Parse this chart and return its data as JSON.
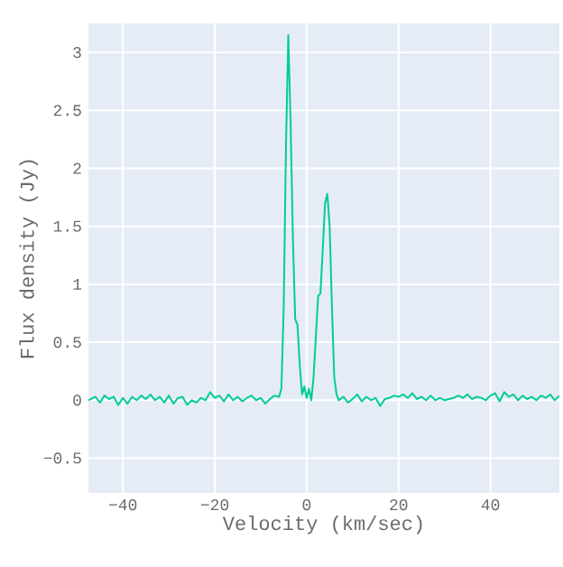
{
  "chart_data": {
    "type": "line",
    "xlabel": "Velocity (km/sec)",
    "ylabel": "Flux density (Jy)",
    "x": [
      -47.5,
      -46,
      -45,
      -44,
      -43,
      -42,
      -41,
      -40,
      -39,
      -38,
      -37,
      -36,
      -35,
      -34,
      -33,
      -32,
      -31,
      -30,
      -29,
      -28,
      -27,
      -26,
      -25,
      -24,
      -23,
      -22,
      -21,
      -20,
      -19,
      -18,
      -17,
      -16,
      -15,
      -14,
      -13,
      -12,
      -11,
      -10,
      -9,
      -8,
      -7,
      -6,
      -5.5,
      -5,
      -4.5,
      -4,
      -3.5,
      -3,
      -2.5,
      -2,
      -1.5,
      -1,
      -0.5,
      0,
      0.5,
      1,
      1.5,
      2,
      2.5,
      3,
      3.5,
      4,
      4.5,
      5,
      5.5,
      6,
      6.5,
      7,
      8,
      9,
      10,
      11,
      12,
      13,
      14,
      15,
      16,
      17,
      18,
      19,
      20,
      21,
      22,
      23,
      24,
      25,
      26,
      27,
      28,
      29,
      30,
      31,
      32,
      33,
      34,
      35,
      36,
      37,
      38,
      39,
      40,
      41,
      42,
      43,
      44,
      45,
      46,
      47,
      48,
      49,
      50,
      51,
      52,
      53,
      54,
      55
    ],
    "series": [
      {
        "color": "#00cc96",
        "values": [
          0.0,
          0.03,
          -0.02,
          0.04,
          0.01,
          0.03,
          -0.04,
          0.02,
          -0.03,
          0.03,
          0.0,
          0.04,
          0.01,
          0.05,
          0.0,
          0.03,
          -0.02,
          0.04,
          -0.03,
          0.02,
          0.03,
          -0.04,
          0.0,
          -0.02,
          0.02,
          0.0,
          0.07,
          0.02,
          0.04,
          -0.01,
          0.05,
          0.0,
          0.03,
          -0.01,
          0.02,
          0.04,
          0.0,
          0.02,
          -0.03,
          0.01,
          0.04,
          0.03,
          0.1,
          0.8,
          2.2,
          3.15,
          2.4,
          1.4,
          0.7,
          0.65,
          0.3,
          0.05,
          0.12,
          0.02,
          0.1,
          0.0,
          0.2,
          0.55,
          0.9,
          0.92,
          1.3,
          1.7,
          1.78,
          1.5,
          0.8,
          0.2,
          0.05,
          0.0,
          0.03,
          -0.02,
          0.01,
          0.05,
          -0.01,
          0.03,
          0.0,
          0.02,
          -0.05,
          0.01,
          0.02,
          0.04,
          0.03,
          0.05,
          0.02,
          0.06,
          0.01,
          0.03,
          0.0,
          0.04,
          0.0,
          0.02,
          0.0,
          0.01,
          0.02,
          0.04,
          0.02,
          0.05,
          0.01,
          0.03,
          0.02,
          0.0,
          0.04,
          0.06,
          -0.01,
          0.07,
          0.03,
          0.05,
          0.0,
          0.04,
          0.01,
          0.03,
          0.0,
          0.04,
          0.02,
          0.05,
          0.0,
          0.04
        ]
      }
    ],
    "xlim": [
      -47.5,
      55
    ],
    "ylim": [
      -0.8,
      3.25
    ],
    "xticks": [
      {
        "value": -40,
        "label": "−40"
      },
      {
        "value": -20,
        "label": "−20"
      },
      0,
      20,
      40
    ],
    "yticks": [
      {
        "value": -0.5,
        "label": "−0.5"
      },
      0,
      0.5,
      1,
      1.5,
      2,
      2.5,
      3
    ],
    "grid": true
  }
}
